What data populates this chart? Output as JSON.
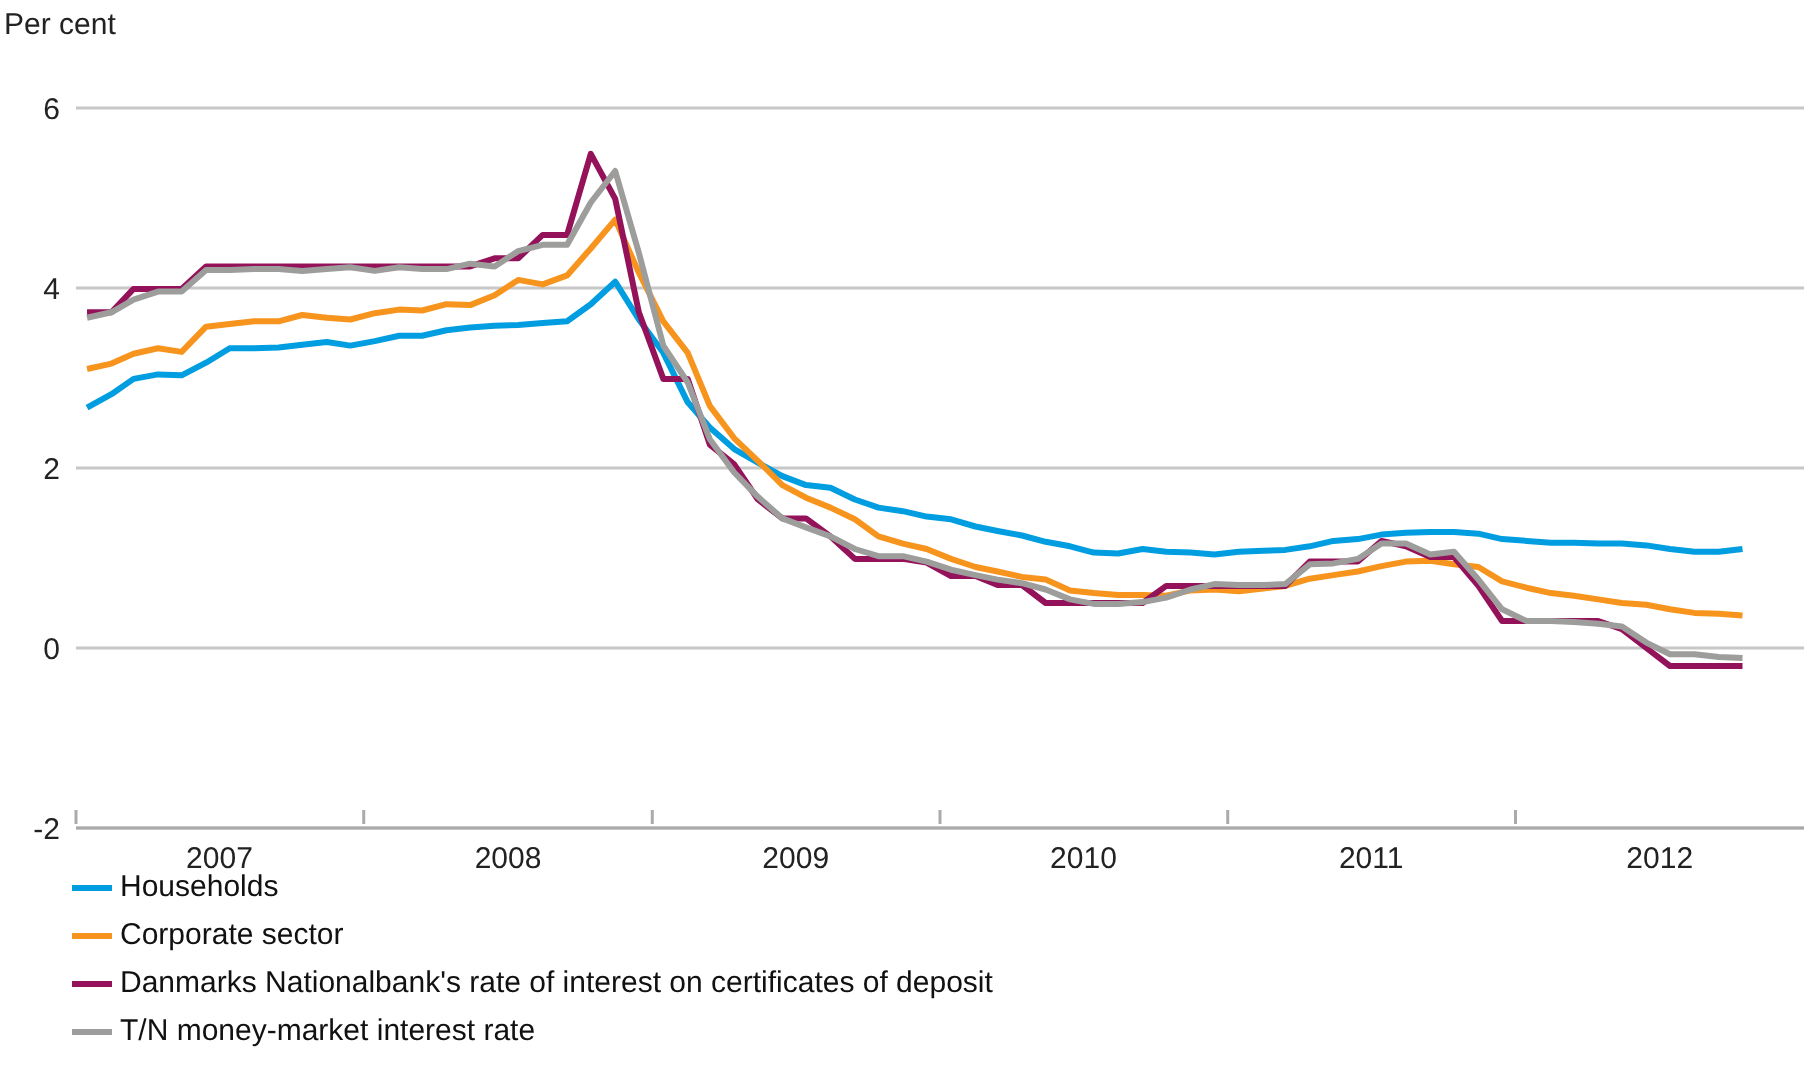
{
  "chart_data": {
    "type": "line",
    "ylabel": "Per cent",
    "x": [
      "2007-01-15",
      "2007-02-15",
      "2007-03-15",
      "2007-04-15",
      "2007-05-15",
      "2007-06-15",
      "2007-07-15",
      "2007-08-15",
      "2007-09-15",
      "2007-10-15",
      "2007-11-15",
      "2007-12-15",
      "2008-01-15",
      "2008-02-15",
      "2008-03-15",
      "2008-04-15",
      "2008-05-15",
      "2008-06-15",
      "2008-07-15",
      "2008-08-15",
      "2008-09-15",
      "2008-10-15",
      "2008-11-15",
      "2008-12-15",
      "2009-01-15",
      "2009-02-15",
      "2009-03-15",
      "2009-04-15",
      "2009-05-15",
      "2009-06-15",
      "2009-07-15",
      "2009-08-15",
      "2009-09-15",
      "2009-10-15",
      "2009-11-15",
      "2009-12-15",
      "2010-01-15",
      "2010-02-15",
      "2010-03-15",
      "2010-04-15",
      "2010-05-15",
      "2010-06-15",
      "2010-07-15",
      "2010-08-15",
      "2010-09-15",
      "2010-10-15",
      "2010-11-15",
      "2010-12-15",
      "2011-01-15",
      "2011-02-15",
      "2011-03-15",
      "2011-04-15",
      "2011-05-15",
      "2011-06-15",
      "2011-07-15",
      "2011-08-15",
      "2011-09-15",
      "2011-10-15",
      "2011-11-15",
      "2011-12-15",
      "2012-01-15",
      "2012-02-15",
      "2012-03-15",
      "2012-04-15",
      "2012-05-15",
      "2012-06-15",
      "2012-07-15",
      "2012-08-15",
      "2012-09-15",
      "2012-10-15"
    ],
    "series": [
      {
        "name": "Households",
        "color": "#009ee0",
        "values": [
          2.67,
          2.82,
          2.99,
          3.04,
          3.03,
          3.17,
          3.33,
          3.33,
          3.34,
          3.37,
          3.4,
          3.36,
          3.41,
          3.47,
          3.47,
          3.53,
          3.56,
          3.58,
          3.59,
          3.61,
          3.63,
          3.82,
          4.07,
          3.65,
          3.28,
          2.73,
          2.45,
          2.21,
          2.06,
          1.91,
          1.81,
          1.78,
          1.65,
          1.56,
          1.52,
          1.46,
          1.43,
          1.35,
          1.3,
          1.25,
          1.18,
          1.13,
          1.06,
          1.05,
          1.1,
          1.07,
          1.06,
          1.04,
          1.07,
          1.08,
          1.09,
          1.13,
          1.19,
          1.21,
          1.26,
          1.28,
          1.29,
          1.29,
          1.27,
          1.21,
          1.19,
          1.17,
          1.17,
          1.16,
          1.16,
          1.14,
          1.1,
          1.07,
          1.07,
          1.1
        ]
      },
      {
        "name": "Corporate sector",
        "color": "#f7941d",
        "values": [
          3.1,
          3.16,
          3.27,
          3.33,
          3.29,
          3.57,
          3.6,
          3.63,
          3.63,
          3.7,
          3.67,
          3.65,
          3.72,
          3.76,
          3.75,
          3.82,
          3.81,
          3.92,
          4.09,
          4.04,
          4.14,
          4.44,
          4.76,
          4.17,
          3.63,
          3.28,
          2.69,
          2.33,
          2.08,
          1.81,
          1.67,
          1.56,
          1.43,
          1.24,
          1.16,
          1.1,
          0.99,
          0.9,
          0.85,
          0.79,
          0.76,
          0.64,
          0.61,
          0.59,
          0.59,
          0.58,
          0.64,
          0.65,
          0.63,
          0.66,
          0.69,
          0.77,
          0.81,
          0.85,
          0.91,
          0.96,
          0.97,
          0.93,
          0.9,
          0.74,
          0.67,
          0.61,
          0.58,
          0.54,
          0.5,
          0.48,
          0.43,
          0.39,
          0.38,
          0.36
        ]
      },
      {
        "name": "Danmarks Nationalbank's rate of interest on certificates of deposit",
        "color": "#93125a",
        "values": [
          3.73,
          3.73,
          3.99,
          3.99,
          3.99,
          4.24,
          4.24,
          4.24,
          4.24,
          4.24,
          4.24,
          4.24,
          4.24,
          4.24,
          4.24,
          4.24,
          4.24,
          4.33,
          4.33,
          4.59,
          4.59,
          5.49,
          4.99,
          3.73,
          2.99,
          2.99,
          2.26,
          2.04,
          1.65,
          1.44,
          1.44,
          1.24,
          0.99,
          0.99,
          0.99,
          0.95,
          0.8,
          0.8,
          0.7,
          0.7,
          0.5,
          0.5,
          0.5,
          0.5,
          0.5,
          0.69,
          0.69,
          0.69,
          0.69,
          0.69,
          0.69,
          0.96,
          0.96,
          0.96,
          1.19,
          1.13,
          1.01,
          1.01,
          0.69,
          0.3,
          0.3,
          0.3,
          0.3,
          0.3,
          0.21,
          0,
          -0.2,
          -0.2,
          -0.2,
          -0.2
        ]
      },
      {
        "name": "T/N money-market interest rate",
        "color": "#9d9d9c",
        "values": [
          3.67,
          3.73,
          3.87,
          3.96,
          3.96,
          4.2,
          4.2,
          4.21,
          4.21,
          4.19,
          4.21,
          4.23,
          4.19,
          4.23,
          4.21,
          4.21,
          4.27,
          4.24,
          4.41,
          4.48,
          4.48,
          4.95,
          5.3,
          4.39,
          3.36,
          2.95,
          2.32,
          1.95,
          1.68,
          1.44,
          1.34,
          1.24,
          1.1,
          1.02,
          1.02,
          0.96,
          0.87,
          0.81,
          0.76,
          0.72,
          0.65,
          0.54,
          0.49,
          0.49,
          0.51,
          0.56,
          0.65,
          0.71,
          0.7,
          0.7,
          0.71,
          0.93,
          0.94,
          0.99,
          1.16,
          1.16,
          1.04,
          1.07,
          0.76,
          0.43,
          0.3,
          0.3,
          0.29,
          0.27,
          0.24,
          0.06,
          -0.07,
          -0.07,
          -0.1,
          -0.11
        ]
      }
    ],
    "xlim": [
      "2007-01-01",
      "2013-01-01"
    ],
    "xticks": [
      {
        "value": "2007-01-01",
        "label": null
      },
      {
        "value": "2007-07-02",
        "label": "2007"
      },
      {
        "value": "2008-01-01",
        "label": null
      },
      {
        "value": "2008-07-02",
        "label": "2008"
      },
      {
        "value": "2009-01-01",
        "label": null
      },
      {
        "value": "2009-07-02",
        "label": "2009"
      },
      {
        "value": "2010-01-01",
        "label": null
      },
      {
        "value": "2010-07-02",
        "label": "2010"
      },
      {
        "value": "2011-01-01",
        "label": null
      },
      {
        "value": "2011-07-02",
        "label": "2011"
      },
      {
        "value": "2012-01-01",
        "label": null
      },
      {
        "value": "2012-07-02",
        "label": "2012"
      }
    ],
    "ylim": [
      -2,
      6
    ],
    "yticks": [
      -2,
      0,
      2,
      4,
      6
    ],
    "grid": "y",
    "legend": "bottom",
    "marker": "none",
    "line_style": "solid"
  }
}
